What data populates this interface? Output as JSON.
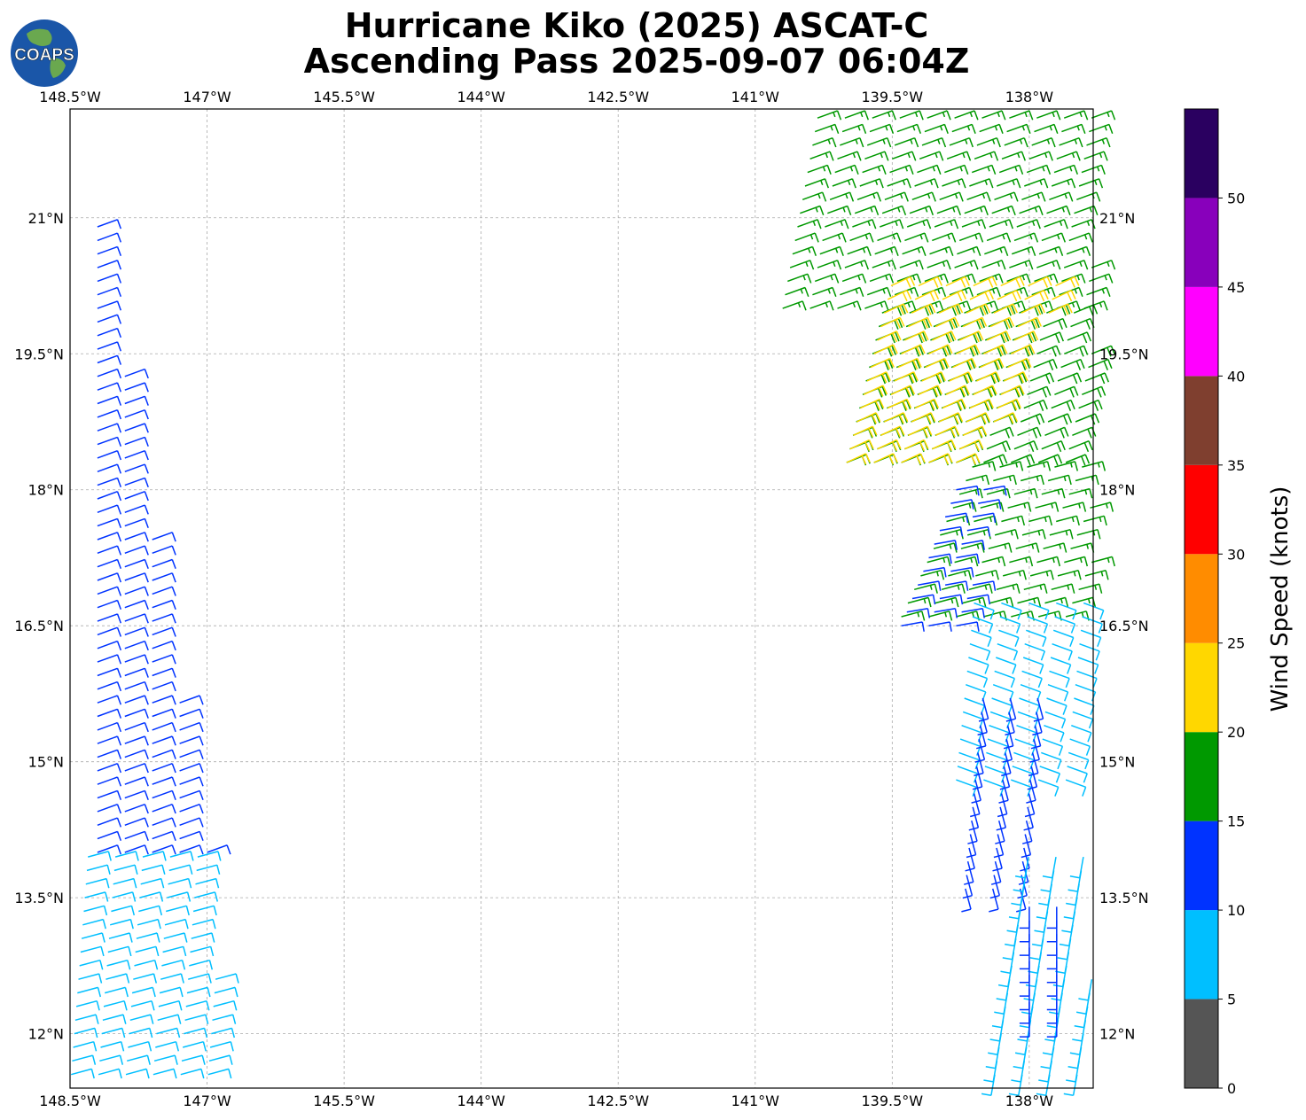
{
  "title": {
    "line1": "Hurricane Kiko (2025) ASCAT-C",
    "line2": "Ascending Pass 2025-09-07 06:04Z"
  },
  "logo": {
    "text": "COAPS",
    "icon": "globe-logo-icon"
  },
  "map": {
    "lon_range": [
      -148.5,
      -137.3
    ],
    "lat_range": [
      11.4,
      22.2
    ],
    "lon_ticks": [
      "148.5°W",
      "147°W",
      "145.5°W",
      "144°W",
      "142.5°W",
      "141°W",
      "139.5°W",
      "138°W"
    ],
    "lon_tick_values": [
      -148.5,
      -147,
      -145.5,
      -144,
      -142.5,
      -141,
      -139.5,
      -138
    ],
    "lat_ticks": [
      "12°N",
      "13.5°N",
      "15°N",
      "16.5°N",
      "18°N",
      "19.5°N",
      "21°N"
    ],
    "lat_tick_values": [
      12,
      13.5,
      15,
      16.5,
      18,
      19.5,
      21
    ],
    "grid": true
  },
  "colorbar": {
    "label": "Wind Speed (knots)",
    "tick_labels": [
      "0",
      "5",
      "10",
      "15",
      "20",
      "25",
      "30",
      "35",
      "40",
      "45",
      "50"
    ],
    "bins": [
      {
        "min": 0,
        "max": 5,
        "color": "#555555"
      },
      {
        "min": 5,
        "max": 10,
        "color": "#00bfff"
      },
      {
        "min": 10,
        "max": 15,
        "color": "#0033ff"
      },
      {
        "min": 15,
        "max": 20,
        "color": "#009900"
      },
      {
        "min": 20,
        "max": 25,
        "color": "#ffd700"
      },
      {
        "min": 25,
        "max": 30,
        "color": "#ff8c00"
      },
      {
        "min": 30,
        "max": 35,
        "color": "#ff0000"
      },
      {
        "min": 35,
        "max": 40,
        "color": "#7f3f2f"
      },
      {
        "min": 40,
        "max": 45,
        "color": "#ff00ff"
      },
      {
        "min": 45,
        "max": 50,
        "color": "#8800bb"
      },
      {
        "min": 50,
        "max": 55,
        "color": "#2a0060"
      }
    ]
  },
  "chart_data": {
    "type": "scatter",
    "variable": "wind barbs",
    "swaths": [
      {
        "name": "west swath",
        "regions": [
          {
            "lat": [
              14.0,
              21.0
            ],
            "lon_west": [
              -148.5,
              -148.5
            ],
            "lon_east": [
              -147.0,
              -148.2
            ],
            "speed_kt": 12,
            "dir_deg": 70
          },
          {
            "lat": [
              11.4,
              14.0
            ],
            "lon_west": [
              -148.5,
              -148.3
            ],
            "lon_east": [
              -146.8,
              -147.0
            ],
            "speed_kt": 9,
            "dir_deg": 75
          }
        ]
      },
      {
        "name": "east swath",
        "regions": [
          {
            "lat": [
              20.0,
              22.2
            ],
            "lon_west": [
              -140.7,
              -140.3
            ],
            "lon_east": [
              -137.3,
              -137.3
            ],
            "speed_kt": 17,
            "dir_deg": 70
          },
          {
            "lat": [
              18.3,
              20.0
            ],
            "lon_west": [
              -140.0,
              -139.6
            ],
            "lon_east": [
              -137.3,
              -137.3
            ],
            "speed_kt": 18,
            "dir_deg": 68
          },
          {
            "lat": [
              18.3,
              20.3
            ],
            "lon_west": [
              -140.0,
              -139.5
            ],
            "lon_east": [
              -138.6,
              -137.6
            ],
            "speed_kt": 22,
            "dir_deg": 65
          },
          {
            "lat": [
              16.6,
              18.3
            ],
            "lon_west": [
              -139.4,
              -138.6
            ],
            "lon_east": [
              -137.3,
              -137.3
            ],
            "speed_kt": 16,
            "dir_deg": 75
          },
          {
            "lat": [
              16.5,
              18.0
            ],
            "lon_west": [
              -139.4,
              -138.8
            ],
            "lon_east": [
              -138.7,
              -138.4
            ],
            "speed_kt": 12,
            "dir_deg": 80
          },
          {
            "lat": [
              14.8,
              16.8
            ],
            "lon_west": [
              -138.8,
              -138.6
            ],
            "lon_east": [
              -137.3,
              -137.3
            ],
            "speed_kt": 8,
            "dir_deg": 110
          },
          {
            "lat": [
              13.6,
              15.8
            ],
            "lon_west": [
              -138.7,
              -138.5
            ],
            "lon_east": [
              -138.0,
              -137.8
            ],
            "speed_kt": 12,
            "dir_deg": 165
          },
          {
            "lat": [
              11.4,
              14.0
            ],
            "lon_west": [
              -138.4,
              -138.0
            ],
            "lon_east": [
              -137.3,
              -137.3
            ],
            "speed_kt": 8,
            "dir_deg": 190
          },
          {
            "lat": [
              12.2,
              13.5
            ],
            "lon_west": [
              -138.0,
              -138.0
            ],
            "lon_east": [
              -137.7,
              -137.7
            ],
            "speed_kt": 11,
            "dir_deg": 180
          }
        ]
      }
    ]
  }
}
